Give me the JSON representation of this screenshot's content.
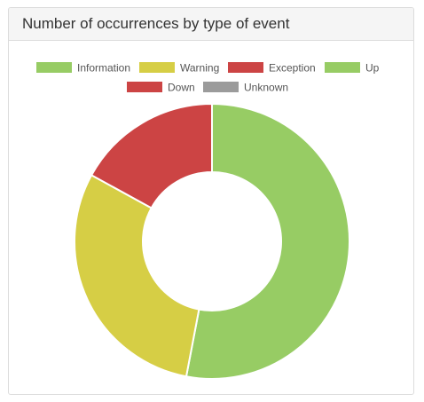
{
  "panel": {
    "title": "Number of occurrences by type of event"
  },
  "chart_data": {
    "type": "pie",
    "donut": true,
    "legend_position": "top",
    "series": [
      {
        "name": "Information",
        "value": 53,
        "color": "#97cc64"
      },
      {
        "name": "Warning",
        "value": 30,
        "color": "#d6ce45"
      },
      {
        "name": "Exception",
        "value": 17,
        "color": "#cc4444"
      },
      {
        "name": "Up",
        "value": 0,
        "color": "#97cc64"
      },
      {
        "name": "Down",
        "value": 0,
        "color": "#cc4444"
      },
      {
        "name": "Unknown",
        "value": 0,
        "color": "#9b9b9b"
      }
    ]
  }
}
